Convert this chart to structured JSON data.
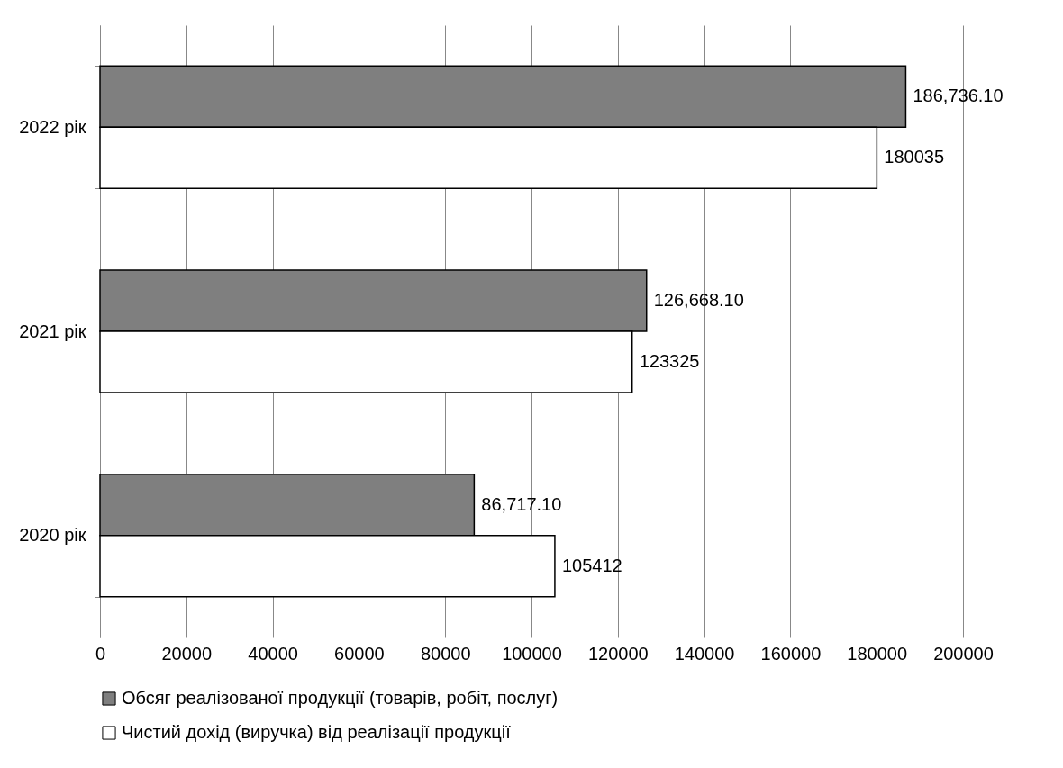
{
  "chart_data": {
    "type": "bar",
    "orientation": "horizontal",
    "categories": [
      "2022 рік",
      "2021 рік",
      "2020 рік"
    ],
    "series": [
      {
        "name": "Обсяг реалізованої продукції (товарів, робіт, послуг)",
        "color": "#7f7f7f",
        "values": [
          186736.1,
          126668.1,
          86717.1
        ],
        "value_labels": [
          "186,736.10",
          "126,668.10",
          "86,717.10"
        ]
      },
      {
        "name": "Чистий дохід (виручка) від реалізації продукції",
        "color": "#ffffff",
        "values": [
          180035,
          123325,
          105412
        ],
        "value_labels": [
          "180035",
          "123325",
          "105412"
        ]
      }
    ],
    "xlim": [
      0,
      200000
    ],
    "xticks": [
      0,
      20000,
      40000,
      60000,
      80000,
      100000,
      120000,
      140000,
      160000,
      180000,
      200000
    ],
    "grid": "x",
    "legend": "bottom"
  }
}
